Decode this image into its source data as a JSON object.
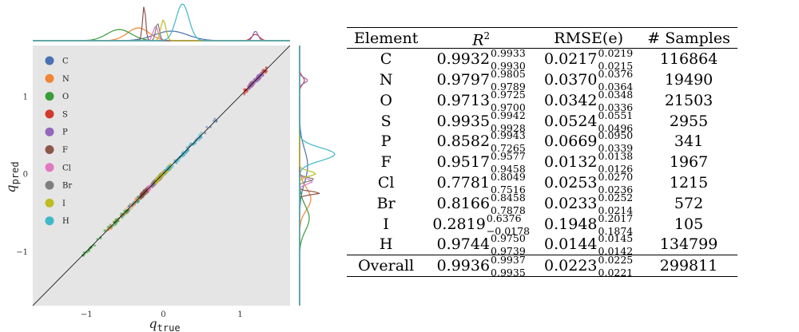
{
  "figure": {
    "ylabel_base": "q",
    "ylabel_sub": "pred",
    "xlabel_base": "q",
    "xlabel_sub": "true",
    "x_ticks": [
      "−1",
      "0",
      "1"
    ],
    "y_ticks": [
      "1",
      "0",
      "−1"
    ]
  },
  "chart_data": [
    {
      "type": "scatter",
      "xlabel": "q_true",
      "ylabel": "q_pred",
      "xlim": [
        -1.7,
        1.65
      ],
      "ylim": [
        -1.7,
        1.65
      ],
      "x_ticks": [
        -1,
        0,
        1
      ],
      "y_ticks": [
        -1,
        0,
        1
      ],
      "grid": false,
      "background": "#e5e5e5",
      "reference_line": "y = x",
      "legend_position": "top-left",
      "series": [
        {
          "name": "C",
          "color": "#4a72b0",
          "x_range": [
            -0.55,
            0.75
          ],
          "y_range": [
            -0.55,
            0.75
          ]
        },
        {
          "name": "N",
          "color": "#ef8636",
          "x_range": [
            -0.75,
            0.1
          ],
          "y_range": [
            -0.75,
            0.1
          ]
        },
        {
          "name": "O",
          "color": "#3a9c3a",
          "x_range": [
            -1.05,
            -0.1
          ],
          "y_range": [
            -1.05,
            -0.1
          ]
        },
        {
          "name": "S",
          "color": "#d03a2a",
          "x_range": [
            1.05,
            1.35
          ],
          "y_range": [
            1.05,
            1.35
          ]
        },
        {
          "name": "P",
          "color": "#9467bd",
          "x_range": [
            1.1,
            1.3
          ],
          "y_range": [
            1.1,
            1.3
          ]
        },
        {
          "name": "F",
          "color": "#8c564b",
          "x_range": [
            -0.3,
            -0.2
          ],
          "y_range": [
            -0.3,
            -0.2
          ]
        },
        {
          "name": "Cl",
          "color": "#e377c2",
          "x_range": [
            -0.2,
            0.0
          ],
          "y_range": [
            -0.2,
            0.0
          ]
        },
        {
          "name": "Br",
          "color": "#7f7f7f",
          "x_range": [
            -0.15,
            0.0
          ],
          "y_range": [
            -0.15,
            0.0
          ]
        },
        {
          "name": "I",
          "color": "#bcbd22",
          "x_range": [
            -0.1,
            0.1
          ],
          "y_range": [
            -0.1,
            0.1
          ]
        },
        {
          "name": "H",
          "color": "#3fb8c8",
          "x_range": [
            0.0,
            0.5
          ],
          "y_range": [
            0.0,
            0.5
          ]
        }
      ]
    },
    {
      "type": "table",
      "columns": [
        "Element",
        "R²",
        "RMSE(e)",
        "# Samples"
      ],
      "rows": [
        {
          "element": "C",
          "r2": "0.9932",
          "r2_upper": "0.9933",
          "r2_lower": "0.9930",
          "rmse": "0.0217",
          "rmse_upper": "0.0219",
          "rmse_lower": "0.0215",
          "samples": "116864"
        },
        {
          "element": "N",
          "r2": "0.9797",
          "r2_upper": "0.9805",
          "r2_lower": "0.9789",
          "rmse": "0.0370",
          "rmse_upper": "0.0376",
          "rmse_lower": "0.0364",
          "samples": "19490"
        },
        {
          "element": "O",
          "r2": "0.9713",
          "r2_upper": "0.9725",
          "r2_lower": "0.9700",
          "rmse": "0.0342",
          "rmse_upper": "0.0348",
          "rmse_lower": "0.0336",
          "samples": "21503"
        },
        {
          "element": "S",
          "r2": "0.9935",
          "r2_upper": "0.9942",
          "r2_lower": "0.9928",
          "rmse": "0.0524",
          "rmse_upper": "0.0551",
          "rmse_lower": "0.0496",
          "samples": "2955"
        },
        {
          "element": "P",
          "r2": "0.8582",
          "r2_upper": "0.9943",
          "r2_lower": "0.7265",
          "rmse": "0.0669",
          "rmse_upper": "0.0950",
          "rmse_lower": "0.0339",
          "samples": "341"
        },
        {
          "element": "F",
          "r2": "0.9517",
          "r2_upper": "0.9577",
          "r2_lower": "0.9458",
          "rmse": "0.0132",
          "rmse_upper": "0.0138",
          "rmse_lower": "0.0126",
          "samples": "1967"
        },
        {
          "element": "Cl",
          "r2": "0.7781",
          "r2_upper": "0.8049",
          "r2_lower": "0.7516",
          "rmse": "0.0253",
          "rmse_upper": "0.0270",
          "rmse_lower": "0.0236",
          "samples": "1215"
        },
        {
          "element": "Br",
          "r2": "0.8166",
          "r2_upper": "0.8458",
          "r2_lower": "0.7878",
          "rmse": "0.0233",
          "rmse_upper": "0.0252",
          "rmse_lower": "0.0214",
          "samples": "572"
        },
        {
          "element": "I",
          "r2": "0.2819",
          "r2_upper": "0.6376",
          "r2_lower": "−0.0178",
          "rmse": "0.1948",
          "rmse_upper": "0.2017",
          "rmse_lower": "0.1874",
          "samples": "105"
        },
        {
          "element": "H",
          "r2": "0.9744",
          "r2_upper": "0.9750",
          "r2_lower": "0.9739",
          "rmse": "0.0144",
          "rmse_upper": "0.0145",
          "rmse_lower": "0.0142",
          "samples": "134799"
        }
      ],
      "overall": {
        "element": "Overall",
        "r2": "0.9936",
        "r2_upper": "0.9937",
        "r2_lower": "0.9935",
        "rmse": "0.0223",
        "rmse_upper": "0.0225",
        "rmse_lower": "0.0221",
        "samples": "299811"
      }
    }
  ]
}
